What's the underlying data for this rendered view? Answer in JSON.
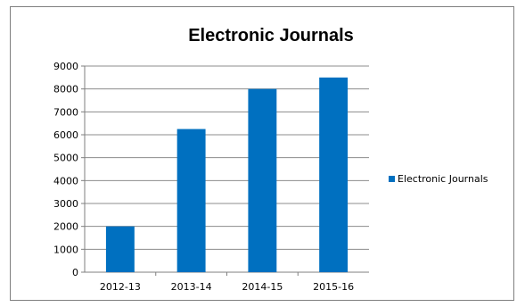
{
  "chart_data": {
    "type": "bar",
    "title": "Electronic Journals",
    "xlabel": "",
    "ylabel": "",
    "categories": [
      "2012-13",
      "2013-14",
      "2014-15",
      "2015-16"
    ],
    "series": [
      {
        "name": "Electronic Journals",
        "values": [
          2000,
          6250,
          8000,
          8500
        ],
        "color": "#0070c0"
      }
    ],
    "ylim": [
      0,
      9000
    ],
    "ytick_step": 1000,
    "yticks": [
      "0",
      "1000",
      "2000",
      "3000",
      "4000",
      "5000",
      "6000",
      "7000",
      "8000",
      "9000"
    ],
    "grid": true,
    "legend_position": "right"
  }
}
